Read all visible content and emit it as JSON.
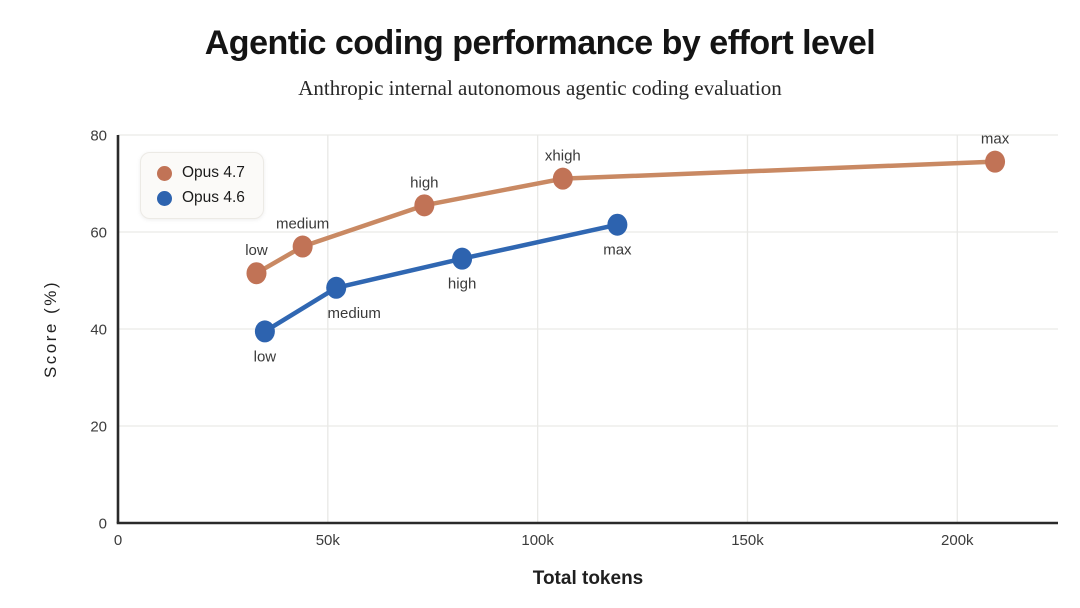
{
  "header": {
    "title": "Agentic coding performance by effort level",
    "subtitle": "Anthropic internal autonomous agentic coding evaluation"
  },
  "chart_data": {
    "type": "line",
    "title": "Agentic coding performance by effort level",
    "subtitle": "Anthropic internal autonomous agentic coding evaluation",
    "xlabel": "Total tokens",
    "ylabel": "Score (%)",
    "xlim": [
      0,
      224000
    ],
    "ylim": [
      0,
      80
    ],
    "x_ticks": [
      {
        "value": 0,
        "label": "0"
      },
      {
        "value": 50000,
        "label": "50k"
      },
      {
        "value": 100000,
        "label": "100k"
      },
      {
        "value": 150000,
        "label": "150k"
      },
      {
        "value": 200000,
        "label": "200k"
      }
    ],
    "y_ticks": [
      {
        "value": 0,
        "label": "0"
      },
      {
        "value": 20,
        "label": "20"
      },
      {
        "value": 40,
        "label": "40"
      },
      {
        "value": 60,
        "label": "60"
      },
      {
        "value": 80,
        "label": "80"
      }
    ],
    "grid": true,
    "legend_position": "top-left",
    "series": [
      {
        "name": "Opus 4.7",
        "marker_color": "#c17356",
        "line_color": "#c98963",
        "points": [
          {
            "label": "low",
            "tokens": 33000,
            "score": 51.5,
            "label_pos": "above",
            "label_dx": 0
          },
          {
            "label": "medium",
            "tokens": 44000,
            "score": 57,
            "label_pos": "above",
            "label_dx": 0
          },
          {
            "label": "high",
            "tokens": 73000,
            "score": 65.5,
            "label_pos": "above",
            "label_dx": 0
          },
          {
            "label": "xhigh",
            "tokens": 106000,
            "score": 71,
            "label_pos": "above",
            "label_dx": 0
          },
          {
            "label": "max",
            "tokens": 209000,
            "score": 74.5,
            "label_pos": "above",
            "label_dx": 0
          }
        ]
      },
      {
        "name": "Opus 4.6",
        "marker_color": "#2d63af",
        "line_color": "#3067b2",
        "points": [
          {
            "label": "low",
            "tokens": 35000,
            "score": 39.5,
            "label_pos": "below",
            "label_dx": 0
          },
          {
            "label": "medium",
            "tokens": 52000,
            "score": 48.5,
            "label_pos": "below",
            "label_dx": 18
          },
          {
            "label": "high",
            "tokens": 82000,
            "score": 54.5,
            "label_pos": "below",
            "label_dx": 0
          },
          {
            "label": "max",
            "tokens": 119000,
            "score": 61.5,
            "label_pos": "below",
            "label_dx": 0
          }
        ]
      }
    ],
    "style": {
      "grid_color": "#e9e9e6",
      "axis_color": "#2a2a2a",
      "tick_label_color": "#3c3c3c",
      "point_label_color": "#3a3a3a",
      "axis_title_color": "#1f1f1f"
    }
  }
}
